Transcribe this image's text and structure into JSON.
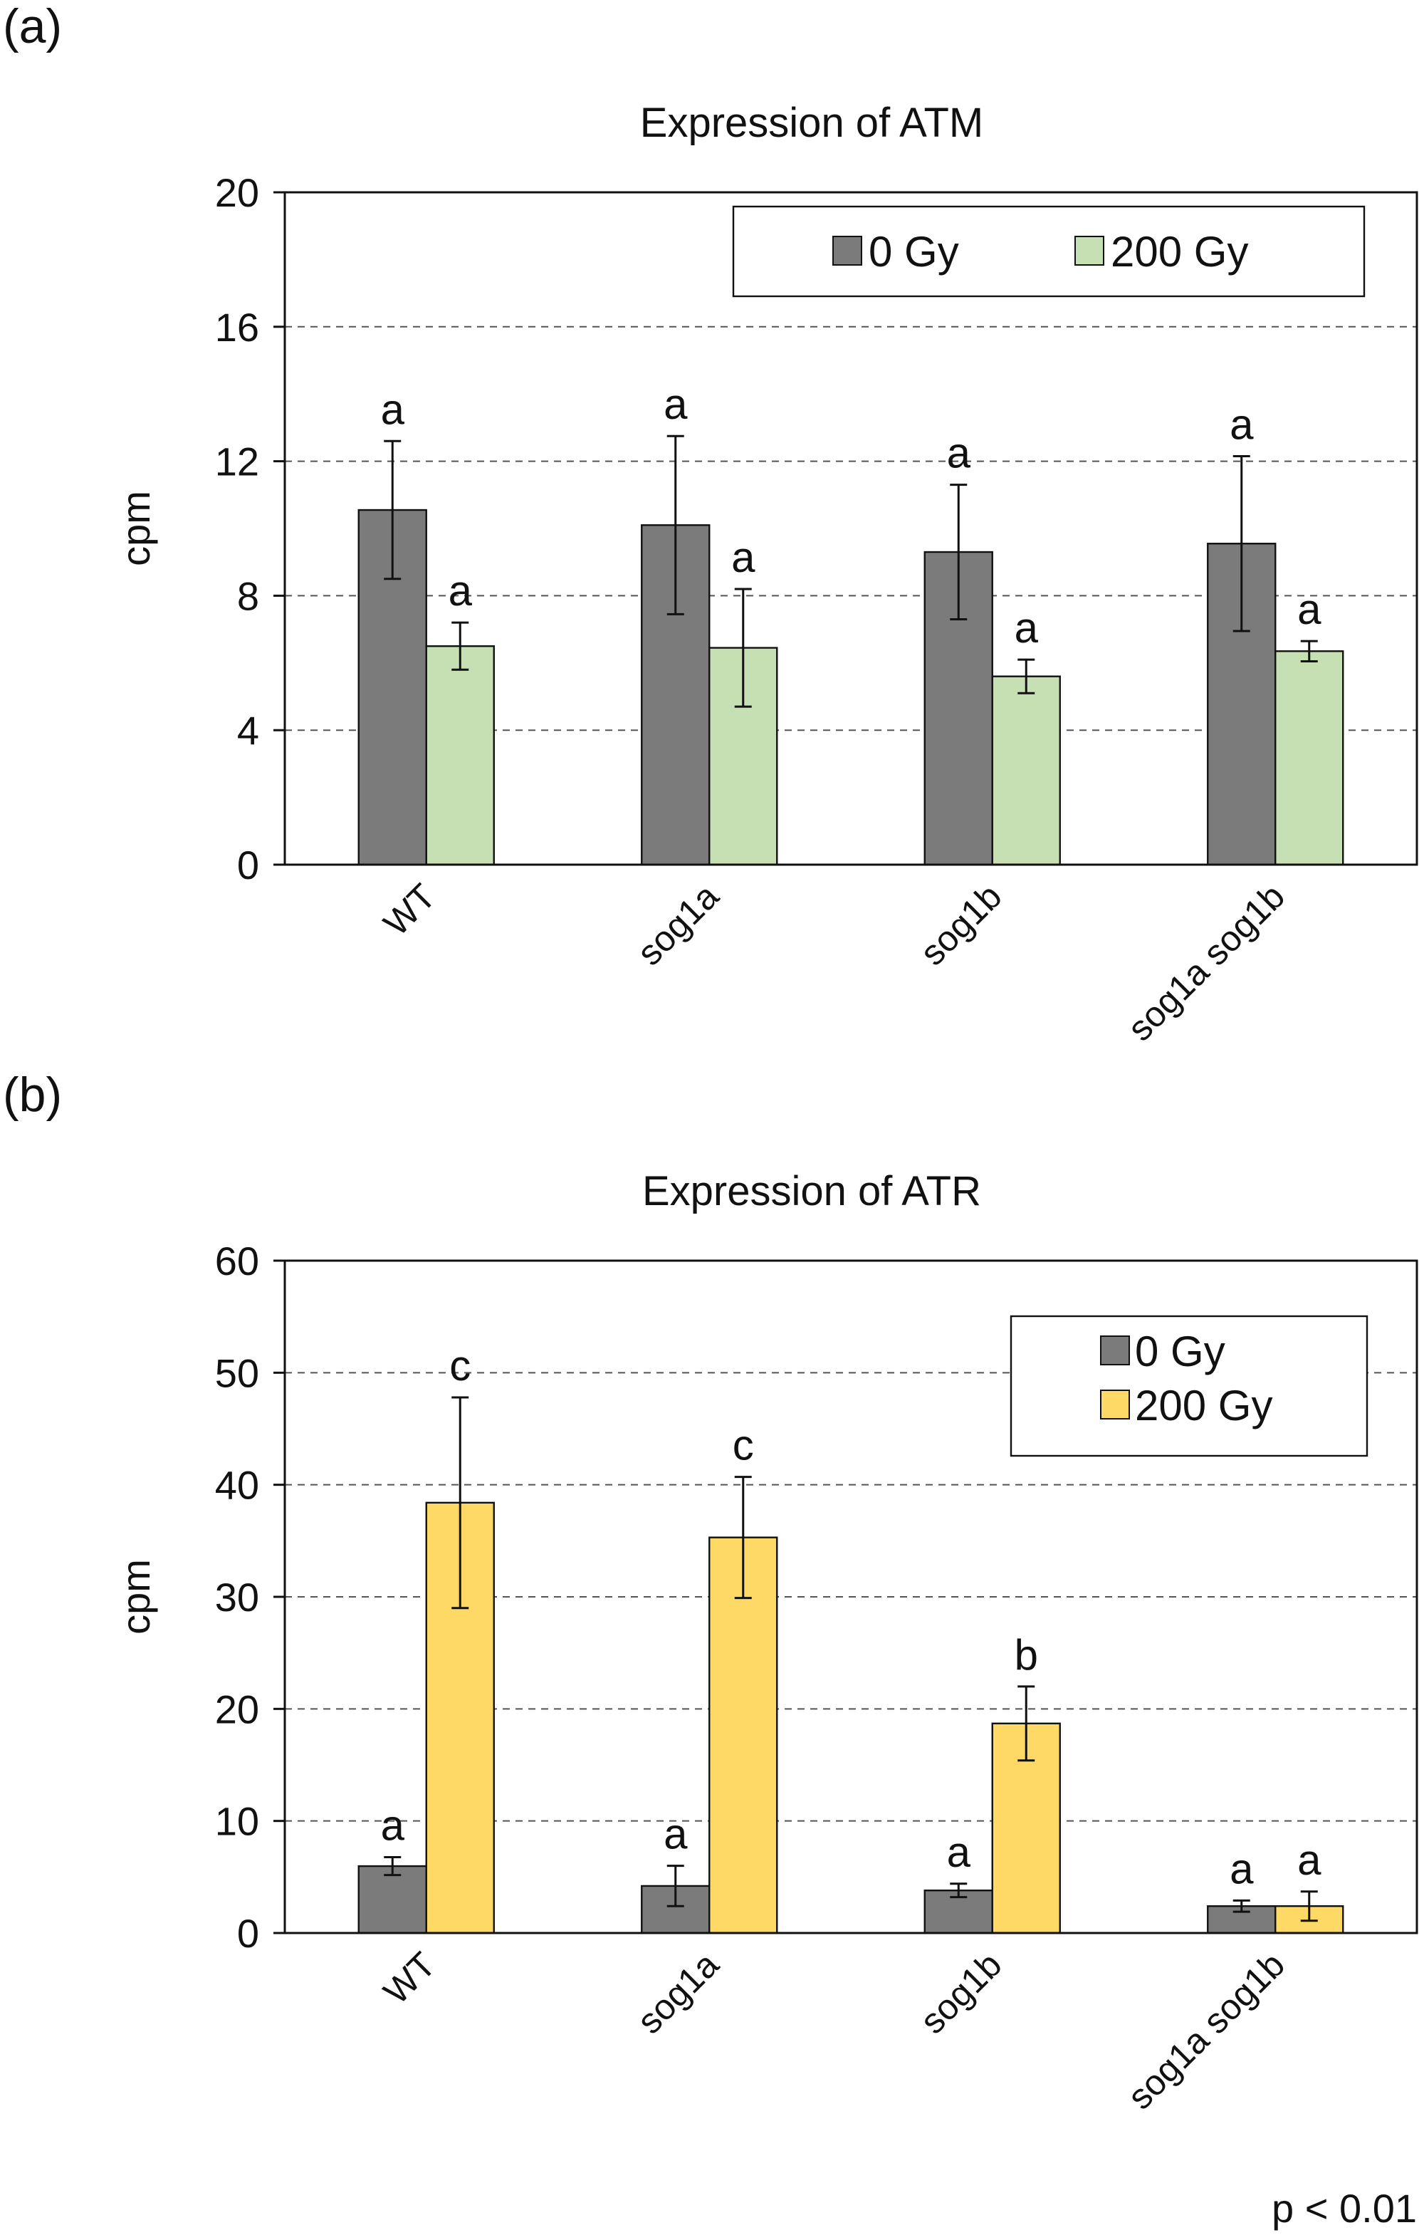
{
  "chart_data": [
    {
      "type": "bar",
      "panel_label": "(a)",
      "title": "Expression of ATM",
      "ylabel": "cpm",
      "categories": [
        "WT",
        "sog1a",
        "sog1b",
        "sog1a sog1b"
      ],
      "series": [
        {
          "name": "0 Gy",
          "color": "#7b7b7b",
          "values": [
            10.55,
            10.1,
            9.3,
            9.55
          ],
          "errors": [
            2.05,
            2.65,
            2.0,
            2.6
          ],
          "annotations": [
            "a",
            "a",
            "a",
            "a"
          ]
        },
        {
          "name": "200 Gy",
          "color": "#c6e0b4",
          "values": [
            6.5,
            6.45,
            5.6,
            6.35
          ],
          "errors": [
            0.7,
            1.75,
            0.5,
            0.3
          ],
          "annotations": [
            "a",
            "a",
            "a",
            "a"
          ]
        }
      ],
      "ylim": [
        0,
        20
      ],
      "yticks": [
        0,
        4,
        8,
        12,
        16,
        20
      ],
      "grid": true,
      "legend": "upper right",
      "legend_layout": "horizontal"
    },
    {
      "type": "bar",
      "panel_label": "(b)",
      "title": "Expression of ATR",
      "ylabel": "cpm",
      "categories": [
        "WT",
        "sog1a",
        "sog1b",
        "sog1a sog1b"
      ],
      "series": [
        {
          "name": "0 Gy",
          "color": "#7b7b7b",
          "values": [
            5.97,
            4.2,
            3.8,
            2.4
          ],
          "errors": [
            0.8,
            1.8,
            0.6,
            0.5
          ],
          "annotations": [
            "a",
            "a",
            "a",
            "a"
          ]
        },
        {
          "name": "200 Gy",
          "color": "#ffd966",
          "values": [
            38.4,
            35.3,
            18.7,
            2.4
          ],
          "errors": [
            9.4,
            5.4,
            3.3,
            1.3
          ],
          "annotations": [
            "c",
            "c",
            "b",
            "a"
          ]
        }
      ],
      "ylim": [
        0,
        60
      ],
      "yticks": [
        0,
        10,
        20,
        30,
        40,
        50,
        60
      ],
      "grid": true,
      "legend": "upper right",
      "legend_layout": "vertical",
      "footnote": "p < 0.01"
    }
  ]
}
